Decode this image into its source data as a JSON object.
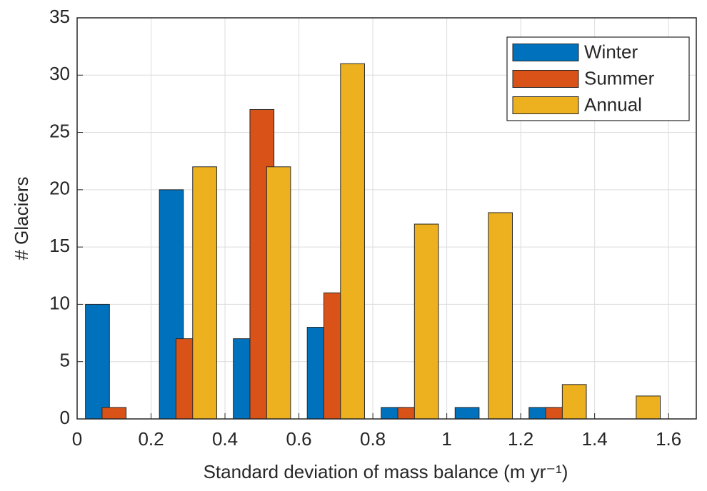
{
  "chart_data": {
    "type": "bar",
    "x_label": "Standard deviation  of mass balance (m yr⁻¹)",
    "y_label": "# Glaciers",
    "x": [
      0.1,
      0.3,
      0.5,
      0.7,
      0.9,
      1.1,
      1.3,
      1.5
    ],
    "series": [
      {
        "name": "Winter",
        "color": "#0072bd",
        "values": [
          10,
          20,
          7,
          8,
          1,
          1,
          1,
          0
        ]
      },
      {
        "name": "Summer",
        "color": "#d95319",
        "values": [
          1,
          7,
          27,
          11,
          1,
          0,
          1,
          0
        ]
      },
      {
        "name": "Annual",
        "color": "#edb120",
        "values": [
          0,
          22,
          22,
          31,
          17,
          18,
          3,
          2
        ]
      }
    ],
    "xlim": [
      0,
      1.675
    ],
    "ylim": [
      0,
      35
    ],
    "xticks": [
      0,
      0.2,
      0.4,
      0.6,
      0.8,
      1,
      1.2,
      1.4,
      1.6
    ],
    "yticks": [
      0,
      5,
      10,
      15,
      20,
      25,
      30,
      35
    ],
    "grid": true,
    "legend": "upper right"
  }
}
